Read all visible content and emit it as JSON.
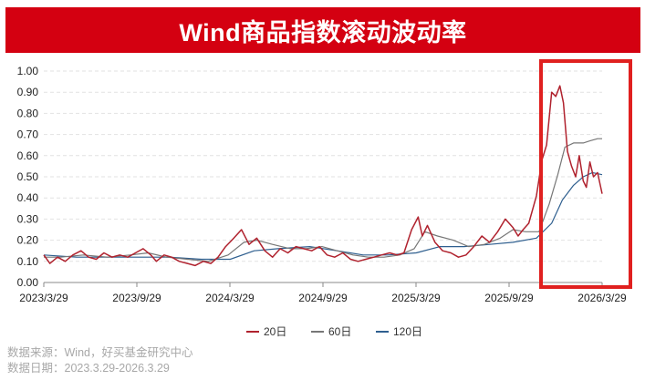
{
  "header": {
    "title": "Wind商品指数滚动波动率"
  },
  "source": {
    "line1": "数据来源：Wind，好买基金研究中心",
    "line2": "数据日期：2023.3.29-2026.3.29"
  },
  "chart_data": {
    "type": "line",
    "title": "Wind商品指数滚动波动率",
    "xlabel": "",
    "ylabel": "",
    "x_tick_labels": [
      "2023/3/29",
      "2023/9/29",
      "2024/3/29",
      "2024/9/29",
      "2025/3/29",
      "2025/9/29",
      "2026/3/29"
    ],
    "y_tick_labels": [
      "0.00",
      "0.10",
      "0.20",
      "0.30",
      "0.40",
      "0.50",
      "0.60",
      "0.70",
      "0.80",
      "0.90",
      "1.00"
    ],
    "ylim": [
      0,
      1.0
    ],
    "xlim": [
      "2023-03-29",
      "2026-03-29"
    ],
    "grid": "horizontal dashed",
    "legend": "bottom-center",
    "annotation": "red box highlighting 2026 spike",
    "series": [
      {
        "name": "20日",
        "color": "#b0222e",
        "x": [
          "2023-03-29",
          "2023-04-10",
          "2023-04-25",
          "2023-05-10",
          "2023-05-25",
          "2023-06-10",
          "2023-06-25",
          "2023-07-10",
          "2023-07-25",
          "2023-08-10",
          "2023-08-25",
          "2023-09-10",
          "2023-09-25",
          "2023-10-10",
          "2023-10-25",
          "2023-11-05",
          "2023-11-20",
          "2023-12-05",
          "2023-12-20",
          "2024-01-05",
          "2024-01-20",
          "2024-02-05",
          "2024-02-20",
          "2024-03-05",
          "2024-03-20",
          "2024-04-05",
          "2024-04-20",
          "2024-05-05",
          "2024-05-20",
          "2024-06-05",
          "2024-06-20",
          "2024-07-05",
          "2024-07-20",
          "2024-08-05",
          "2024-08-20",
          "2024-09-05",
          "2024-09-20",
          "2024-10-05",
          "2024-10-20",
          "2024-11-05",
          "2024-11-20",
          "2024-12-05",
          "2024-12-20",
          "2025-01-05",
          "2025-01-20",
          "2025-02-05",
          "2025-02-20",
          "2025-03-05",
          "2025-03-20",
          "2025-04-02",
          "2025-04-10",
          "2025-04-20",
          "2025-05-05",
          "2025-05-20",
          "2025-06-05",
          "2025-06-20",
          "2025-07-05",
          "2025-07-20",
          "2025-08-05",
          "2025-08-20",
          "2025-09-05",
          "2025-09-20",
          "2025-10-05",
          "2025-10-15",
          "2025-10-25",
          "2025-11-05",
          "2025-11-20",
          "2025-12-01",
          "2025-12-10",
          "2025-12-20",
          "2025-12-28",
          "2026-01-05",
          "2026-01-12",
          "2026-01-20",
          "2026-01-28",
          "2026-02-05",
          "2026-02-12",
          "2026-02-20",
          "2026-02-26",
          "2026-03-05",
          "2026-03-12",
          "2026-03-20",
          "2026-03-29"
        ],
        "values": [
          0.13,
          0.09,
          0.12,
          0.1,
          0.13,
          0.15,
          0.12,
          0.11,
          0.14,
          0.12,
          0.13,
          0.12,
          0.14,
          0.16,
          0.13,
          0.1,
          0.13,
          0.12,
          0.1,
          0.09,
          0.08,
          0.1,
          0.09,
          0.12,
          0.17,
          0.21,
          0.25,
          0.18,
          0.21,
          0.15,
          0.12,
          0.16,
          0.14,
          0.17,
          0.16,
          0.15,
          0.17,
          0.13,
          0.12,
          0.14,
          0.11,
          0.1,
          0.11,
          0.12,
          0.13,
          0.14,
          0.13,
          0.14,
          0.25,
          0.31,
          0.22,
          0.27,
          0.19,
          0.15,
          0.14,
          0.12,
          0.13,
          0.17,
          0.22,
          0.19,
          0.24,
          0.3,
          0.26,
          0.22,
          0.25,
          0.28,
          0.41,
          0.58,
          0.65,
          0.9,
          0.88,
          0.93,
          0.85,
          0.62,
          0.55,
          0.5,
          0.6,
          0.48,
          0.45,
          0.57,
          0.5,
          0.52,
          0.42
        ]
      },
      {
        "name": "60日",
        "color": "#777777",
        "x": [
          "2023-03-29",
          "2023-05-01",
          "2023-06-15",
          "2023-08-01",
          "2023-09-15",
          "2023-10-20",
          "2023-11-25",
          "2024-01-05",
          "2024-02-15",
          "2024-03-25",
          "2024-04-25",
          "2024-05-20",
          "2024-06-20",
          "2024-07-25",
          "2024-08-25",
          "2024-09-25",
          "2024-10-25",
          "2024-11-25",
          "2024-12-25",
          "2025-01-25",
          "2025-02-25",
          "2025-03-25",
          "2025-04-15",
          "2025-05-10",
          "2025-06-10",
          "2025-07-10",
          "2025-08-10",
          "2025-09-10",
          "2025-10-05",
          "2025-10-30",
          "2025-11-25",
          "2025-12-15",
          "2026-01-01",
          "2026-01-15",
          "2026-02-01",
          "2026-02-20",
          "2026-03-05",
          "2026-03-20",
          "2026-03-29"
        ],
        "values": [
          0.12,
          0.12,
          0.13,
          0.12,
          0.13,
          0.14,
          0.12,
          0.11,
          0.1,
          0.13,
          0.19,
          0.2,
          0.18,
          0.16,
          0.16,
          0.17,
          0.15,
          0.13,
          0.12,
          0.12,
          0.13,
          0.16,
          0.24,
          0.22,
          0.2,
          0.17,
          0.18,
          0.21,
          0.25,
          0.24,
          0.24,
          0.37,
          0.51,
          0.64,
          0.66,
          0.66,
          0.67,
          0.68,
          0.68
        ]
      },
      {
        "name": "120日",
        "color": "#2f5f8f",
        "x": [
          "2023-03-29",
          "2023-06-01",
          "2023-08-01",
          "2023-10-01",
          "2023-12-01",
          "2024-02-01",
          "2024-03-29",
          "2024-05-15",
          "2024-07-01",
          "2024-09-01",
          "2024-10-25",
          "2024-12-15",
          "2025-02-01",
          "2025-03-29",
          "2025-05-15",
          "2025-07-01",
          "2025-08-20",
          "2025-10-05",
          "2025-11-20",
          "2025-12-20",
          "2026-01-10",
          "2026-02-01",
          "2026-02-20",
          "2026-03-10",
          "2026-03-29"
        ],
        "values": [
          0.13,
          0.12,
          0.12,
          0.12,
          0.12,
          0.11,
          0.11,
          0.15,
          0.16,
          0.17,
          0.15,
          0.13,
          0.13,
          0.14,
          0.17,
          0.17,
          0.18,
          0.19,
          0.21,
          0.28,
          0.39,
          0.46,
          0.5,
          0.52,
          0.51
        ]
      }
    ]
  }
}
